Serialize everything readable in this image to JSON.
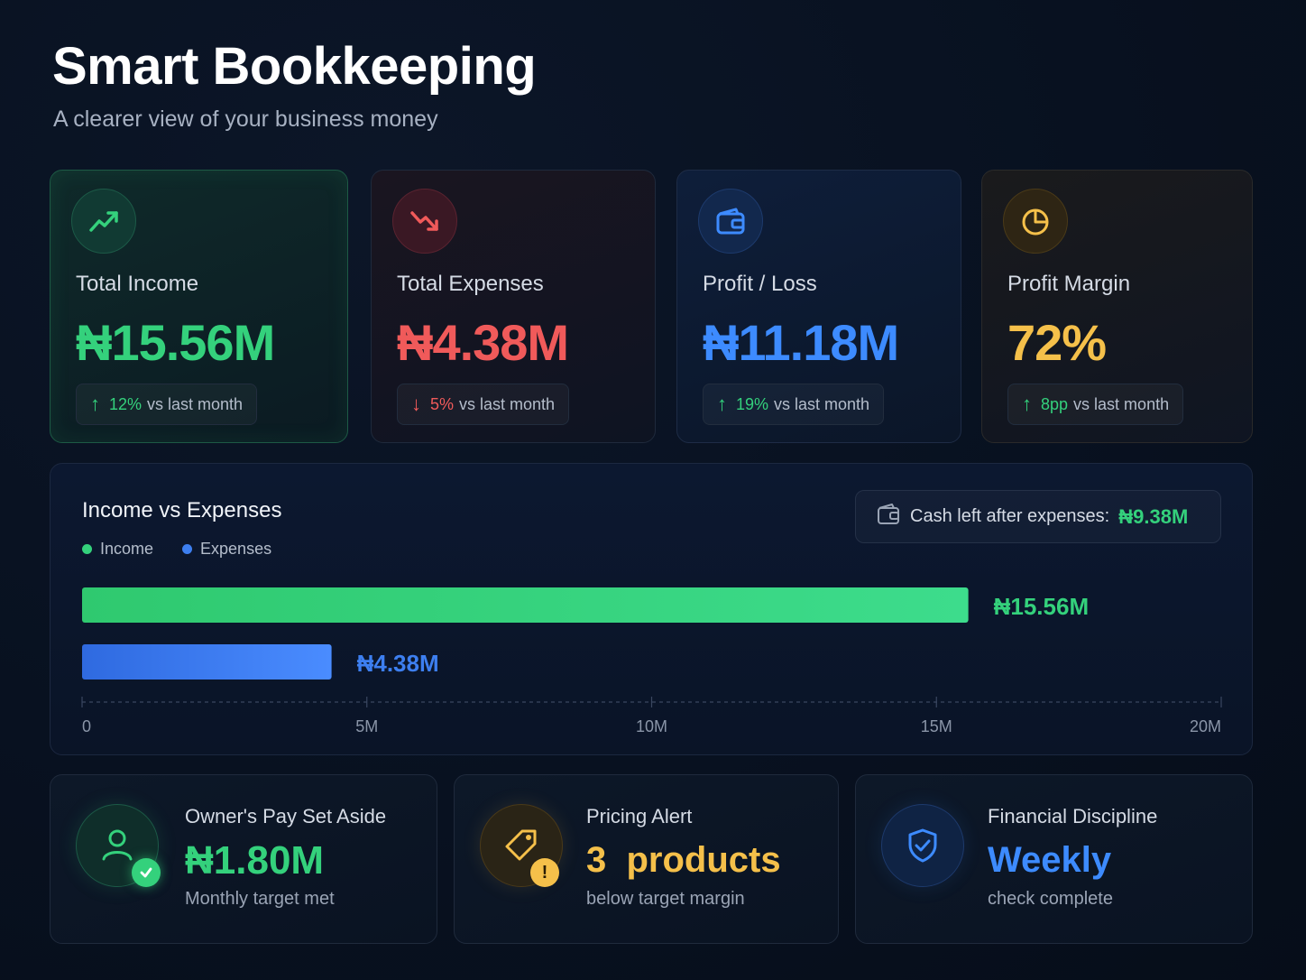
{
  "header": {
    "title": "Smart Bookkeeping",
    "subtitle": "A clearer view of your business money"
  },
  "kpis": [
    {
      "label": "Total Income",
      "value": "₦15.56M",
      "change": "12%",
      "change_suffix": "vs last month",
      "direction": "up",
      "icon": "trending-up-icon",
      "color": "#34d17c"
    },
    {
      "label": "Total Expenses",
      "value": "₦4.38M",
      "change": "5%",
      "change_suffix": "vs last month",
      "direction": "down",
      "icon": "trending-down-icon",
      "color": "#f05a5a"
    },
    {
      "label": "Profit / Loss",
      "value": "₦11.18M",
      "change": "19%",
      "change_suffix": "vs last month",
      "direction": "up",
      "icon": "wallet-icon",
      "color": "#3d8bff"
    },
    {
      "label": "Profit Margin",
      "value": "72%",
      "change": "8pp",
      "change_suffix": "vs last month",
      "direction": "up",
      "icon": "pie-chart-icon",
      "color": "#f5c04a"
    }
  ],
  "chart": {
    "title": "Income vs Expenses",
    "legend": [
      "Income",
      "Expenses"
    ],
    "cash_label": "Cash left after expenses:",
    "cash_value": "₦9.38M"
  },
  "chart_data": {
    "type": "bar",
    "orientation": "horizontal",
    "categories": [
      "Income",
      "Expenses"
    ],
    "values": [
      15.56,
      4.38
    ],
    "value_labels": [
      "₦15.56M",
      "₦4.38M"
    ],
    "colors": [
      "#34d17c",
      "#3d7ff0"
    ],
    "xlim": [
      0,
      20
    ],
    "ticks": [
      0,
      5,
      10,
      15,
      20
    ],
    "tick_labels": [
      "0",
      "5M",
      "10M",
      "15M",
      "20M"
    ],
    "title": "Income vs Expenses",
    "legend_placement": "top-left"
  },
  "bottom": [
    {
      "label": "Owner's Pay Set Aside",
      "value": "₦1.80M",
      "sub": "Monthly target met",
      "icon": "user-icon",
      "badge": "check-badge-icon",
      "color": "#34d17c"
    },
    {
      "label": "Pricing Alert",
      "value": "3  products",
      "sub": "below target margin",
      "icon": "tag-icon",
      "badge": "warning-badge-icon",
      "color": "#f5c04a"
    },
    {
      "label": "Financial Discipline",
      "value": "Weekly",
      "sub": "check complete",
      "icon": "shield-check-icon",
      "color": "#3d8bff"
    }
  ]
}
